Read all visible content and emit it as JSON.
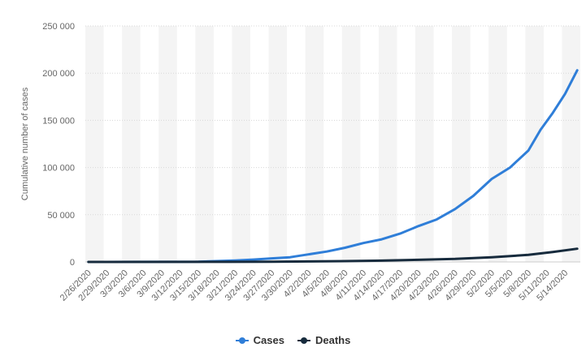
{
  "chart_data": {
    "type": "line",
    "title": "",
    "xlabel": "",
    "ylabel": "Cumulative number of cases",
    "ylim": [
      0,
      250000
    ],
    "yticks": [
      0,
      50000,
      100000,
      150000,
      200000,
      250000
    ],
    "ytick_labels": [
      "0",
      "50 000",
      "100 000",
      "150 000",
      "200 000",
      "250 000"
    ],
    "grid": true,
    "legend_position": "bottom-center",
    "x_tick_labels": [
      "2/26/2020",
      "2/29/2020",
      "3/3/2020",
      "3/6/2020",
      "3/9/2020",
      "3/12/2020",
      "3/15/2020",
      "3/18/2020",
      "3/21/2020",
      "3/24/2020",
      "3/27/2020",
      "3/30/2020",
      "4/2/2020",
      "4/5/2020",
      "4/8/2020",
      "4/11/2020",
      "4/14/2020",
      "4/17/2020",
      "4/20/2020",
      "4/23/2020",
      "4/26/2020",
      "4/29/2020",
      "5/2/2020",
      "5/5/2020",
      "5/8/2020",
      "5/11/2020",
      "5/14/2020"
    ],
    "x_start": "2/26/2020",
    "x_end": "5/16/2020",
    "series": [
      {
        "name": "Cases",
        "color": "#2f7ed8",
        "x": [
          "2/26/2020",
          "3/15/2020",
          "3/21/2020",
          "3/24/2020",
          "3/27/2020",
          "3/30/2020",
          "4/2/2020",
          "4/5/2020",
          "4/8/2020",
          "4/11/2020",
          "4/14/2020",
          "4/17/2020",
          "4/20/2020",
          "4/23/2020",
          "4/26/2020",
          "4/29/2020",
          "5/2/2020",
          "5/5/2020",
          "5/8/2020",
          "5/10/2020",
          "5/12/2020",
          "5/14/2020",
          "5/16/2020"
        ],
        "y": [
          0,
          300,
          1500,
          2500,
          3800,
          5000,
          8000,
          11000,
          15000,
          20000,
          24000,
          30000,
          38000,
          45000,
          56000,
          70000,
          88000,
          100000,
          118000,
          140000,
          158000,
          178000,
          203000
        ]
      },
      {
        "name": "Deaths",
        "color": "#172b3d",
        "x": [
          "2/26/2020",
          "3/20/2020",
          "3/27/2020",
          "4/2/2020",
          "4/8/2020",
          "4/14/2020",
          "4/20/2020",
          "4/26/2020",
          "5/2/2020",
          "5/8/2020",
          "5/12/2020",
          "5/16/2020"
        ],
        "y": [
          0,
          50,
          200,
          500,
          900,
          1400,
          2200,
          3200,
          5000,
          7500,
          10500,
          14000
        ]
      }
    ]
  }
}
